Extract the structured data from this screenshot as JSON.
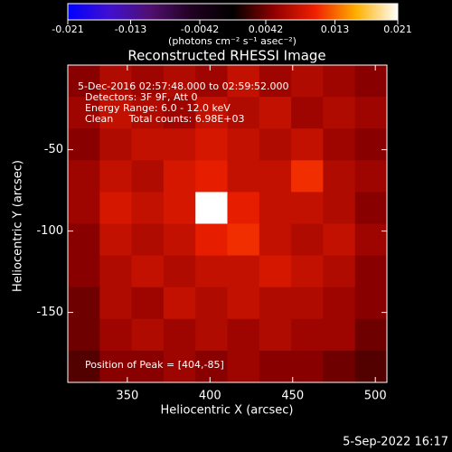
{
  "chart_data": {
    "type": "heatmap",
    "title": "Reconstructed RHESSI Image",
    "x_label": "Heliocentric X (arcsec)",
    "y_label": "Heliocentric Y (arcsec)",
    "colorbar_label": "(photons cm⁻² s⁻¹ asec⁻²)",
    "clim": [
      -0.021,
      0.021
    ],
    "cticks": [
      -0.021,
      -0.013,
      -0.0042,
      0.0042,
      0.013,
      0.021
    ],
    "colormap": [
      "#0000ff",
      "#4010d0",
      "#501070",
      "#200020",
      "#000000",
      "#900000",
      "#f02000",
      "#ffb000",
      "#ffffff"
    ],
    "annotations": [
      "5-Dec-2016 02:57:48.000 to 02:59:52.000",
      "Detectors: 3F 9F, Att 0",
      "Energy Range: 6.0 - 12.0 keV",
      "Clean     Total counts: 6.98E+03"
    ],
    "peak_label": "Position of Peak = [404,-85]",
    "footer": "5-Sep-2022 16:17",
    "xlim": [
      314,
      507
    ],
    "xticks": [
      350,
      400,
      450,
      500
    ],
    "ylim": [
      -193,
      2
    ],
    "yticks": [
      -50,
      -100,
      -150
    ],
    "z": [
      [
        0.005,
        0.007,
        0.006,
        0.007,
        0.006,
        0.008,
        0.006,
        0.007,
        0.006,
        0.005
      ],
      [
        0.006,
        0.008,
        0.007,
        0.006,
        0.008,
        0.007,
        0.008,
        0.006,
        0.007,
        0.006
      ],
      [
        0.005,
        0.007,
        0.008,
        0.008,
        0.009,
        0.008,
        0.007,
        0.008,
        0.006,
        0.005
      ],
      [
        0.006,
        0.008,
        0.007,
        0.009,
        0.01,
        0.008,
        0.008,
        0.011,
        0.007,
        0.006
      ],
      [
        0.006,
        0.009,
        0.008,
        0.009,
        0.021,
        0.01,
        0.008,
        0.008,
        0.007,
        0.005
      ],
      [
        0.005,
        0.008,
        0.007,
        0.008,
        0.01,
        0.011,
        0.008,
        0.007,
        0.008,
        0.006
      ],
      [
        0.005,
        0.007,
        0.008,
        0.007,
        0.008,
        0.008,
        0.009,
        0.008,
        0.007,
        0.005
      ],
      [
        0.004,
        0.007,
        0.006,
        0.008,
        0.007,
        0.008,
        0.007,
        0.007,
        0.006,
        0.005
      ],
      [
        0.004,
        0.006,
        0.007,
        0.006,
        0.007,
        0.006,
        0.007,
        0.006,
        0.006,
        0.004
      ],
      [
        0.003,
        0.005,
        0.005,
        0.006,
        0.005,
        0.006,
        0.005,
        0.005,
        0.004,
        0.003
      ]
    ]
  }
}
